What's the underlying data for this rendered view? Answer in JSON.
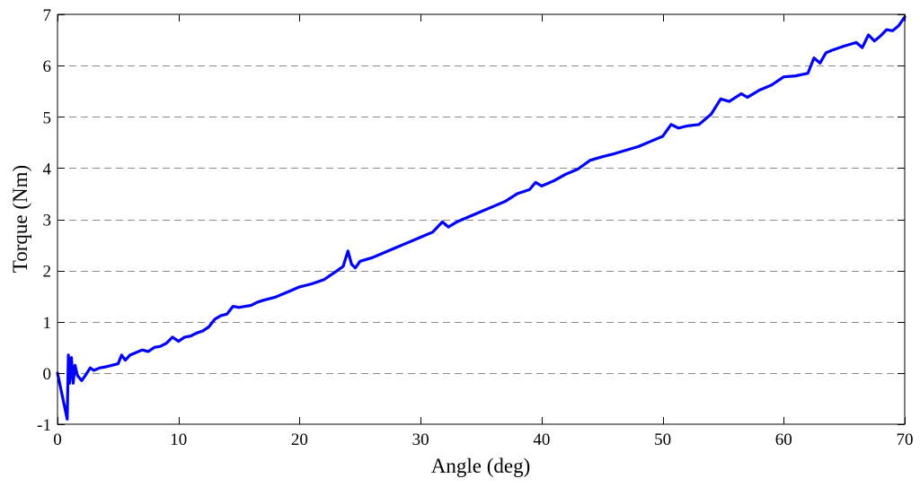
{
  "chart_data": {
    "type": "line",
    "title": "",
    "xlabel": "Angle (deg)",
    "ylabel": "Torque (Nm)",
    "xlim": [
      0,
      70
    ],
    "ylim": [
      -1,
      7
    ],
    "xticks": [
      0,
      10,
      20,
      30,
      40,
      50,
      60,
      70
    ],
    "yticks": [
      -1,
      0,
      1,
      2,
      3,
      4,
      5,
      6,
      7
    ],
    "grid": "horizontal dashed",
    "legend": "none",
    "series": [
      {
        "color": "#0000ff",
        "x": [
          0,
          0.8,
          0.9,
          1.0,
          1.15,
          1.3,
          1.45,
          1.65,
          2.0,
          2.3,
          2.7,
          3.0,
          3.5,
          4.0,
          4.5,
          5.0,
          5.3,
          5.6,
          6.0,
          6.5,
          7.0,
          7.5,
          8.0,
          8.5,
          9.0,
          9.5,
          10.0,
          10.5,
          11.0,
          11.5,
          12.0,
          12.5,
          13.0,
          13.5,
          14.0,
          14.5,
          15.0,
          15.5,
          16.0,
          16.5,
          17.0,
          18.0,
          19.0,
          20.0,
          21.0,
          22.0,
          23.0,
          23.6,
          24.0,
          24.3,
          24.6,
          25.0,
          26.0,
          27.0,
          28.0,
          29.0,
          30.0,
          31.0,
          31.8,
          32.3,
          33.0,
          34.0,
          35.0,
          36.0,
          37.0,
          38.0,
          39.0,
          39.5,
          40.0,
          41.0,
          42.0,
          43.0,
          44.0,
          45.0,
          46.0,
          47.0,
          48.0,
          49.0,
          50.0,
          50.7,
          51.3,
          52.0,
          53.0,
          54.0,
          54.8,
          55.5,
          56.5,
          57.0,
          58.0,
          59.0,
          60.0,
          61.0,
          62.0,
          62.5,
          63.0,
          63.5,
          64.0,
          65.0,
          66.0,
          66.5,
          67.0,
          67.5,
          68.0,
          68.5,
          69.0,
          69.5,
          70.0
        ],
        "y": [
          0,
          -0.9,
          0.35,
          -0.2,
          0.3,
          -0.2,
          0.15,
          -0.05,
          -0.15,
          -0.05,
          0.1,
          0.05,
          0.1,
          0.12,
          0.15,
          0.18,
          0.35,
          0.25,
          0.35,
          0.4,
          0.45,
          0.42,
          0.5,
          0.52,
          0.58,
          0.7,
          0.62,
          0.7,
          0.72,
          0.78,
          0.82,
          0.9,
          1.05,
          1.12,
          1.15,
          1.3,
          1.28,
          1.3,
          1.32,
          1.38,
          1.42,
          1.48,
          1.58,
          1.68,
          1.74,
          1.82,
          1.98,
          2.08,
          2.38,
          2.12,
          2.05,
          2.18,
          2.25,
          2.35,
          2.45,
          2.55,
          2.65,
          2.75,
          2.95,
          2.85,
          2.95,
          3.05,
          3.15,
          3.25,
          3.35,
          3.5,
          3.58,
          3.72,
          3.65,
          3.75,
          3.88,
          3.98,
          4.15,
          4.22,
          4.28,
          4.35,
          4.42,
          4.52,
          4.62,
          4.85,
          4.78,
          4.82,
          4.85,
          5.05,
          5.35,
          5.3,
          5.45,
          5.38,
          5.52,
          5.62,
          5.78,
          5.8,
          5.85,
          6.15,
          6.05,
          6.25,
          6.3,
          6.38,
          6.45,
          6.35,
          6.6,
          6.48,
          6.58,
          6.7,
          6.68,
          6.78,
          6.95
        ]
      }
    ]
  }
}
